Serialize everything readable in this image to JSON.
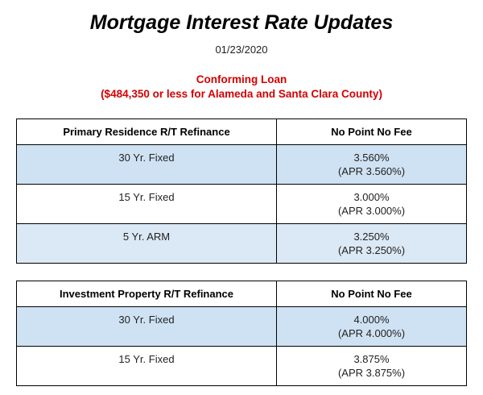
{
  "header": {
    "title": "Mortgage Interest Rate Updates",
    "date": "01/23/2020",
    "loan_type": "Conforming Loan",
    "loan_note": "($484,350 or less for Alameda and Santa Clara County)"
  },
  "tables": [
    {
      "columns": [
        "Primary Residence R/T Refinance",
        "No Point No Fee"
      ],
      "rows": [
        {
          "term": "30 Yr. Fixed",
          "rate": "3.560%",
          "apr": "(APR 3.560%)"
        },
        {
          "term": "15 Yr. Fixed",
          "rate": "3.000%",
          "apr": "(APR 3.000%)"
        },
        {
          "term": "5 Yr. ARM",
          "rate": "3.250%",
          "apr": "(APR 3.250%)"
        }
      ]
    },
    {
      "columns": [
        "Investment Property R/T Refinance",
        "No Point No Fee"
      ],
      "rows": [
        {
          "term": "30 Yr. Fixed",
          "rate": "4.000%",
          "apr": "(APR 4.000%)"
        },
        {
          "term": "15 Yr. Fixed",
          "rate": "3.875%",
          "apr": "(APR 3.875%)"
        }
      ]
    }
  ]
}
